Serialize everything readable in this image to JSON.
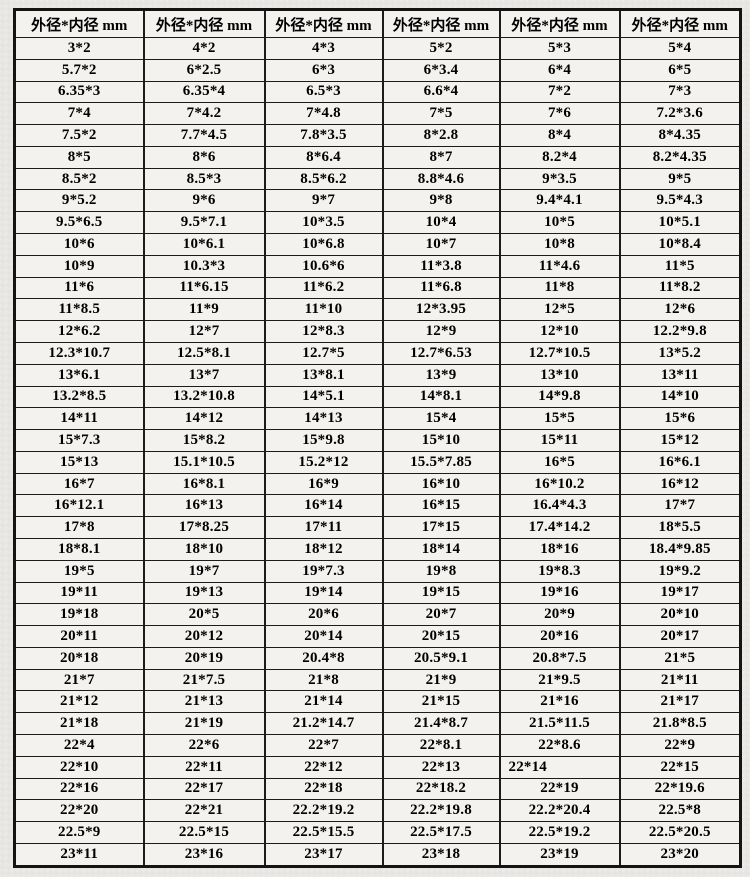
{
  "page": {
    "background_color": "#e9e7e4",
    "table_background": "#f3f2ef",
    "border_color": "#1c1c1c",
    "text_color": "#000000"
  },
  "table": {
    "header_label": "外径*内径 mm",
    "columns": 6,
    "left_aligned_cells": [
      [
        33,
        4
      ]
    ],
    "rows": [
      [
        "3*2",
        "4*2",
        "4*3",
        "5*2",
        "5*3",
        "5*4"
      ],
      [
        "5.7*2",
        "6*2.5",
        "6*3",
        "6*3.4",
        "6*4",
        "6*5"
      ],
      [
        "6.35*3",
        "6.35*4",
        "6.5*3",
        "6.6*4",
        "7*2",
        "7*3"
      ],
      [
        "7*4",
        "7*4.2",
        "7*4.8",
        "7*5",
        "7*6",
        "7.2*3.6"
      ],
      [
        "7.5*2",
        "7.7*4.5",
        "7.8*3.5",
        "8*2.8",
        "8*4",
        "8*4.35"
      ],
      [
        "8*5",
        "8*6",
        "8*6.4",
        "8*7",
        "8.2*4",
        "8.2*4.35"
      ],
      [
        "8.5*2",
        "8.5*3",
        "8.5*6.2",
        "8.8*4.6",
        "9*3.5",
        "9*5"
      ],
      [
        "9*5.2",
        "9*6",
        "9*7",
        "9*8",
        "9.4*4.1",
        "9.5*4.3"
      ],
      [
        "9.5*6.5",
        "9.5*7.1",
        "10*3.5",
        "10*4",
        "10*5",
        "10*5.1"
      ],
      [
        "10*6",
        "10*6.1",
        "10*6.8",
        "10*7",
        "10*8",
        "10*8.4"
      ],
      [
        "10*9",
        "10.3*3",
        "10.6*6",
        "11*3.8",
        "11*4.6",
        "11*5"
      ],
      [
        "11*6",
        "11*6.15",
        "11*6.2",
        "11*6.8",
        "11*8",
        "11*8.2"
      ],
      [
        "11*8.5",
        "11*9",
        "11*10",
        "12*3.95",
        "12*5",
        "12*6"
      ],
      [
        "12*6.2",
        "12*7",
        "12*8.3",
        "12*9",
        "12*10",
        "12.2*9.8"
      ],
      [
        "12.3*10.7",
        "12.5*8.1",
        "12.7*5",
        "12.7*6.53",
        "12.7*10.5",
        "13*5.2"
      ],
      [
        "13*6.1",
        "13*7",
        "13*8.1",
        "13*9",
        "13*10",
        "13*11"
      ],
      [
        "13.2*8.5",
        "13.2*10.8",
        "14*5.1",
        "14*8.1",
        "14*9.8",
        "14*10"
      ],
      [
        "14*11",
        "14*12",
        "14*13",
        "15*4",
        "15*5",
        "15*6"
      ],
      [
        "15*7.3",
        "15*8.2",
        "15*9.8",
        "15*10",
        "15*11",
        "15*12"
      ],
      [
        "15*13",
        "15.1*10.5",
        "15.2*12",
        "15.5*7.85",
        "16*5",
        "16*6.1"
      ],
      [
        "16*7",
        "16*8.1",
        "16*9",
        "16*10",
        "16*10.2",
        "16*12"
      ],
      [
        "16*12.1",
        "16*13",
        "16*14",
        "16*15",
        "16.4*4.3",
        "17*7"
      ],
      [
        "17*8",
        "17*8.25",
        "17*11",
        "17*15",
        "17.4*14.2",
        "18*5.5"
      ],
      [
        "18*8.1",
        "18*10",
        "18*12",
        "18*14",
        "18*16",
        "18.4*9.85"
      ],
      [
        "19*5",
        "19*7",
        "19*7.3",
        "19*8",
        "19*8.3",
        "19*9.2"
      ],
      [
        "19*11",
        "19*13",
        "19*14",
        "19*15",
        "19*16",
        "19*17"
      ],
      [
        "19*18",
        "20*5",
        "20*6",
        "20*7",
        "20*9",
        "20*10"
      ],
      [
        "20*11",
        "20*12",
        "20*14",
        "20*15",
        "20*16",
        "20*17"
      ],
      [
        "20*18",
        "20*19",
        "20.4*8",
        "20.5*9.1",
        "20.8*7.5",
        "21*5"
      ],
      [
        "21*7",
        "21*7.5",
        "21*8",
        "21*9",
        "21*9.5",
        "21*11"
      ],
      [
        "21*12",
        "21*13",
        "21*14",
        "21*15",
        "21*16",
        "21*17"
      ],
      [
        "21*18",
        "21*19",
        "21.2*14.7",
        "21.4*8.7",
        "21.5*11.5",
        "21.8*8.5"
      ],
      [
        "22*4",
        "22*6",
        "22*7",
        "22*8.1",
        "22*8.6",
        "22*9"
      ],
      [
        "22*10",
        "22*11",
        "22*12",
        "22*13",
        "22*14",
        "22*15"
      ],
      [
        "22*16",
        "22*17",
        "22*18",
        "22*18.2",
        "22*19",
        "22*19.6"
      ],
      [
        "22*20",
        "22*21",
        "22.2*19.2",
        "22.2*19.8",
        "22.2*20.4",
        "22.5*8"
      ],
      [
        "22.5*9",
        "22.5*15",
        "22.5*15.5",
        "22.5*17.5",
        "22.5*19.2",
        "22.5*20.5"
      ],
      [
        "23*11",
        "23*16",
        "23*17",
        "23*18",
        "23*19",
        "23*20"
      ]
    ]
  }
}
